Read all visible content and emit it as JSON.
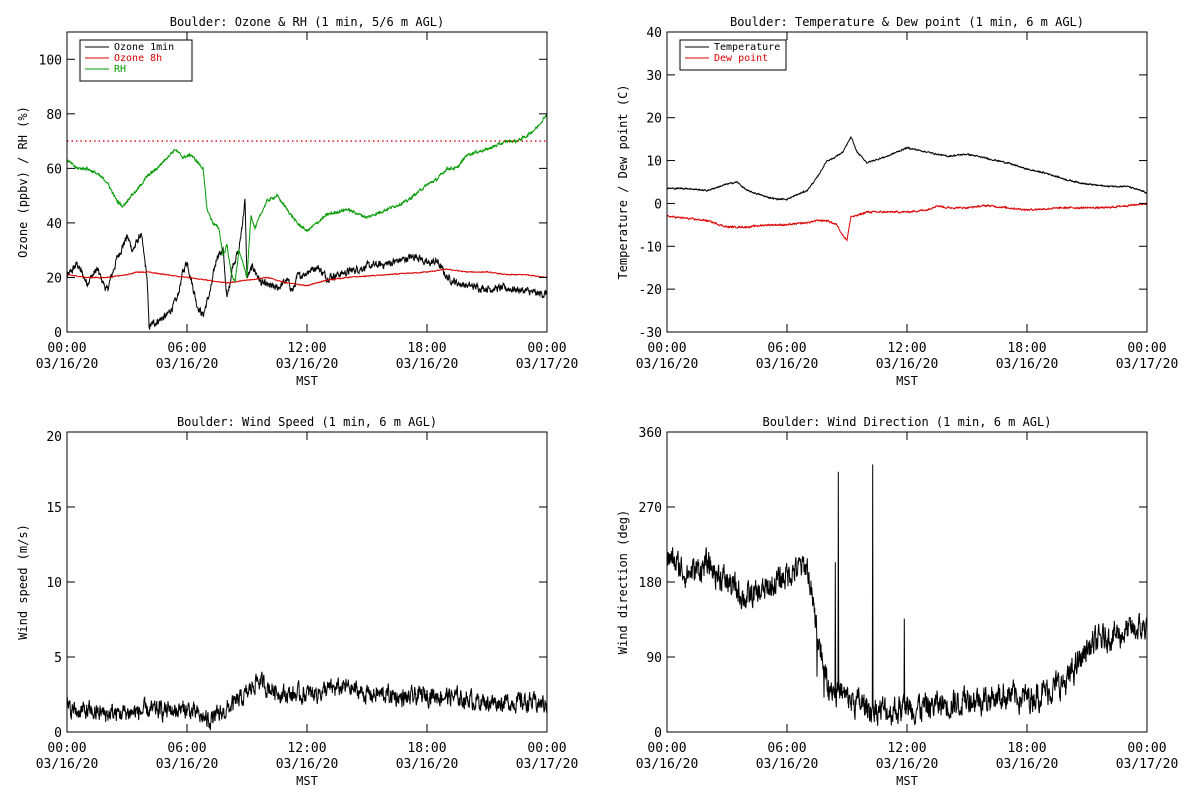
{
  "colors": {
    "black": "#000000",
    "red": "#dd0000",
    "green": "#009900",
    "background": "#ffffff"
  },
  "chart_data": [
    {
      "id": "ozone_rh",
      "type": "line",
      "title": "Boulder: Ozone & RH (1 min, 5/6 m AGL)",
      "ylabel": "Ozone (ppbv) / RH (%)",
      "xlabel": "MST",
      "xlim": [
        0,
        24
      ],
      "ylim": [
        0,
        110
      ],
      "yticks": [
        0,
        20,
        40,
        60,
        80,
        100
      ],
      "xticks": [
        {
          "time": "00:00",
          "date": "03/16/20"
        },
        {
          "time": "06:00",
          "date": "03/16/20"
        },
        {
          "time": "12:00",
          "date": "03/16/20"
        },
        {
          "time": "18:00",
          "date": "03/16/20"
        },
        {
          "time": "00:00",
          "date": "03/17/20"
        }
      ],
      "legend_position": "top-left",
      "reference_line": {
        "y": 70,
        "style": "dotted",
        "color": "#dd0000"
      },
      "series": [
        {
          "name": "Ozone 1min",
          "color": "#000000",
          "noise": 2.5,
          "x": [
            0,
            0.5,
            1,
            1.5,
            2,
            2.5,
            3,
            3.3,
            3.7,
            4,
            4.1,
            4.5,
            5,
            5.5,
            5.8,
            6,
            6.5,
            6.8,
            7.2,
            7.5,
            7.8,
            8,
            8.3,
            8.6,
            8.9,
            9,
            9.3,
            9.7,
            10,
            10.5,
            11,
            11.3,
            11.5,
            12,
            12.5,
            13,
            14,
            15,
            16,
            17,
            17.5,
            18,
            18.5,
            19,
            19.5,
            20,
            21,
            22,
            23,
            23.5,
            24
          ],
          "y": [
            20,
            25,
            18,
            23,
            15,
            27,
            35,
            30,
            36,
            20,
            2,
            4,
            6,
            12,
            22,
            26,
            10,
            6,
            16,
            28,
            30,
            12,
            25,
            30,
            48,
            20,
            24,
            18,
            17,
            16,
            19,
            15,
            20,
            22,
            24,
            20,
            22,
            24,
            25,
            27,
            28,
            25,
            26,
            20,
            18,
            17,
            16,
            16,
            15,
            14,
            14
          ]
        },
        {
          "name": "Ozone 8h",
          "color": "#dd0000",
          "noise": 0.3,
          "x": [
            0,
            1,
            2,
            3,
            3.5,
            4,
            5,
            6,
            7,
            8,
            9,
            10,
            11,
            12,
            13,
            14,
            16,
            18,
            19,
            20,
            21,
            22,
            23,
            24
          ],
          "y": [
            21,
            20,
            20,
            21,
            22,
            22,
            21,
            20,
            19,
            18,
            19,
            20,
            18,
            17,
            19,
            20,
            21,
            22,
            23,
            22,
            22,
            21,
            21,
            20
          ]
        },
        {
          "name": "RH",
          "color": "#009900",
          "noise": 0.9,
          "x": [
            0,
            0.5,
            1,
            1.5,
            2,
            2.5,
            2.8,
            3.2,
            3.5,
            4,
            4.5,
            5,
            5.4,
            5.8,
            6.2,
            6.8,
            7,
            7.3,
            7.6,
            7.8,
            8,
            8.2,
            8.4,
            8.6,
            8.8,
            9,
            9.2,
            9.4,
            9.8,
            10,
            10.5,
            11,
            11.5,
            12,
            12.5,
            13,
            14,
            15,
            16,
            17,
            18,
            18.5,
            19,
            19.5,
            20,
            21,
            22,
            22.5,
            23,
            23.5,
            24
          ],
          "y": [
            63,
            60,
            60,
            58,
            55,
            48,
            46,
            50,
            52,
            57,
            60,
            64,
            67,
            64,
            65,
            60,
            45,
            40,
            38,
            28,
            32,
            22,
            18,
            30,
            25,
            20,
            43,
            38,
            45,
            48,
            50,
            45,
            40,
            37,
            40,
            43,
            45,
            42,
            45,
            48,
            54,
            56,
            60,
            60,
            65,
            67,
            70,
            70,
            72,
            75,
            80
          ]
        }
      ]
    },
    {
      "id": "temp_dew",
      "type": "line",
      "title": "Boulder: Temperature & Dew point (1 min, 6 m AGL)",
      "ylabel": "Temperature / Dew point (C)",
      "xlabel": "MST",
      "xlim": [
        0,
        24
      ],
      "ylim": [
        -30,
        40
      ],
      "yticks": [
        -30,
        -20,
        -10,
        0,
        10,
        20,
        30,
        40
      ],
      "xticks": [
        {
          "time": "00:00",
          "date": "03/16/20"
        },
        {
          "time": "06:00",
          "date": "03/16/20"
        },
        {
          "time": "12:00",
          "date": "03/16/20"
        },
        {
          "time": "18:00",
          "date": "03/16/20"
        },
        {
          "time": "00:00",
          "date": "03/17/20"
        }
      ],
      "legend_position": "top-left",
      "series": [
        {
          "name": "Temperature",
          "color": "#000000",
          "noise": 0.3,
          "x": [
            0,
            1,
            2,
            3,
            3.5,
            4,
            5,
            5.5,
            6,
            7,
            7.5,
            8,
            8.3,
            8.8,
            9.2,
            9.5,
            10,
            11,
            12,
            12.5,
            13,
            14,
            15,
            16,
            17,
            18,
            19,
            20,
            21,
            22,
            23,
            24
          ],
          "y": [
            3.5,
            3.5,
            3,
            4.5,
            5,
            3,
            1.5,
            1,
            1,
            3,
            6,
            10,
            10.5,
            12,
            15.5,
            12,
            9.5,
            11,
            13,
            12.5,
            12,
            11,
            11.5,
            10.5,
            9.5,
            8,
            7,
            5.5,
            4.5,
            4,
            4,
            2.5
          ]
        },
        {
          "name": "Dew point",
          "color": "#dd0000",
          "noise": 0.35,
          "x": [
            0,
            1,
            2,
            3,
            4,
            5,
            6,
            7,
            7.5,
            8,
            8.5,
            8.8,
            9,
            9.2,
            9.4,
            10,
            11,
            12,
            13,
            13.5,
            14,
            15,
            16,
            18,
            20,
            22,
            24
          ],
          "y": [
            -3,
            -3.5,
            -4,
            -5.5,
            -5.5,
            -5,
            -5,
            -4.5,
            -4,
            -4,
            -5,
            -7.5,
            -8.5,
            -3,
            -3,
            -2,
            -2,
            -2,
            -1.5,
            -0.5,
            -1,
            -1,
            -0.5,
            -1.5,
            -1,
            -1,
            0
          ]
        }
      ]
    },
    {
      "id": "wind_speed",
      "type": "line",
      "title": "Boulder: Wind Speed (1 min, 6 m AGL)",
      "ylabel": "Wind speed (m/s)",
      "xlabel": "MST",
      "xlim": [
        0,
        24
      ],
      "ylim": [
        0,
        20
      ],
      "yticks": [
        0,
        5,
        10,
        15,
        20
      ],
      "xticks": [
        {
          "time": "00:00",
          "date": "03/16/20"
        },
        {
          "time": "06:00",
          "date": "03/16/20"
        },
        {
          "time": "12:00",
          "date": "03/16/20"
        },
        {
          "time": "18:00",
          "date": "03/16/20"
        },
        {
          "time": "00:00",
          "date": "03/17/20"
        }
      ],
      "series": [
        {
          "name": "",
          "color": "#000000",
          "noise": 1.1,
          "x": [
            0,
            2,
            4,
            6,
            7,
            7.5,
            8,
            9,
            9.5,
            10,
            11,
            12,
            13,
            14,
            15,
            16,
            17,
            18,
            19,
            20,
            21,
            22,
            23,
            24
          ],
          "y": [
            1.5,
            1.2,
            1.4,
            1.5,
            0.8,
            1.0,
            1.5,
            2.5,
            3.5,
            3,
            2.5,
            2.5,
            2.8,
            3,
            2.5,
            2.5,
            2.2,
            2.5,
            2.4,
            2.2,
            2.0,
            2.0,
            2.0,
            1.8
          ]
        }
      ]
    },
    {
      "id": "wind_dir",
      "type": "line",
      "title": "Boulder: Wind Direction (1 min, 6 m AGL)",
      "ylabel": "Wind direction (deg)",
      "xlabel": "MST",
      "xlim": [
        0,
        24
      ],
      "ylim": [
        0,
        360
      ],
      "yticks": [
        0,
        90,
        180,
        270,
        360
      ],
      "xticks": [
        {
          "time": "00:00",
          "date": "03/16/20"
        },
        {
          "time": "06:00",
          "date": "03/16/20"
        },
        {
          "time": "12:00",
          "date": "03/16/20"
        },
        {
          "time": "18:00",
          "date": "03/16/20"
        },
        {
          "time": "00:00",
          "date": "03/17/20"
        }
      ],
      "series": [
        {
          "name": "",
          "color": "#000000",
          "noise": 30,
          "x": [
            0,
            1,
            2,
            3,
            4,
            5,
            6,
            7,
            7.5,
            8,
            9,
            10,
            11,
            12,
            13,
            14,
            14.5,
            15,
            16,
            17,
            18,
            19,
            20,
            20.5,
            21,
            22,
            23,
            24
          ],
          "y": [
            210,
            190,
            200,
            180,
            160,
            170,
            190,
            200,
            120,
            60,
            40,
            30,
            25,
            30,
            30,
            35,
            35,
            40,
            40,
            45,
            40,
            50,
            60,
            80,
            100,
            115,
            120,
            125
          ]
        }
      ]
    }
  ]
}
